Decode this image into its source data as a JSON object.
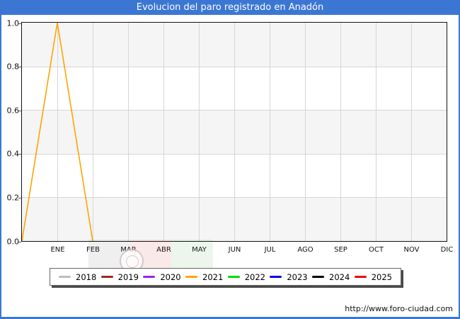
{
  "window": {
    "title": "Evolucion del paro registrado en Anadón"
  },
  "footer": {
    "url": "http://www.foro-ciudad.com"
  },
  "colors": {
    "frame_blue": "#3b76d3",
    "grid": "#d6d6d6",
    "band_gray": "#f5f5f5",
    "band_white": "#ffffff",
    "plot_border": "#111111"
  },
  "chart_data": {
    "type": "line",
    "title": "Evolucion del paro registrado en Anadón",
    "categories": [
      "ENE",
      "FEB",
      "MAR",
      "ABR",
      "MAY",
      "JUN",
      "JUL",
      "AGO",
      "SEP",
      "OCT",
      "NOV",
      "DIC"
    ],
    "x_unit": "month-index (0 = left axis origin, 1 = ENE ... 12 = DIC)",
    "ylim": [
      0.0,
      1.0
    ],
    "yticks": [
      "0.0",
      "0.2",
      "0.4",
      "0.6",
      "0.8",
      "1.0"
    ],
    "grid": true,
    "background_bands": "alternating gray/white per 0.2",
    "legend_position": "bottom",
    "series": [
      {
        "name": "2018",
        "color": "#bdbdbd",
        "x": [],
        "y": []
      },
      {
        "name": "2019",
        "color": "#9e2a21",
        "x": [],
        "y": []
      },
      {
        "name": "2020",
        "color": "#a020f0",
        "x": [],
        "y": []
      },
      {
        "name": "2021",
        "color": "#ffa400",
        "x": [
          0,
          1,
          2
        ],
        "y": [
          0.0,
          1.0,
          0.0
        ]
      },
      {
        "name": "2022",
        "color": "#00d800",
        "x": [],
        "y": []
      },
      {
        "name": "2023",
        "color": "#0000f0",
        "x": [],
        "y": []
      },
      {
        "name": "2024",
        "color": "#000000",
        "x": [],
        "y": []
      },
      {
        "name": "2025",
        "color": "#f40000",
        "x": [],
        "y": []
      }
    ]
  }
}
